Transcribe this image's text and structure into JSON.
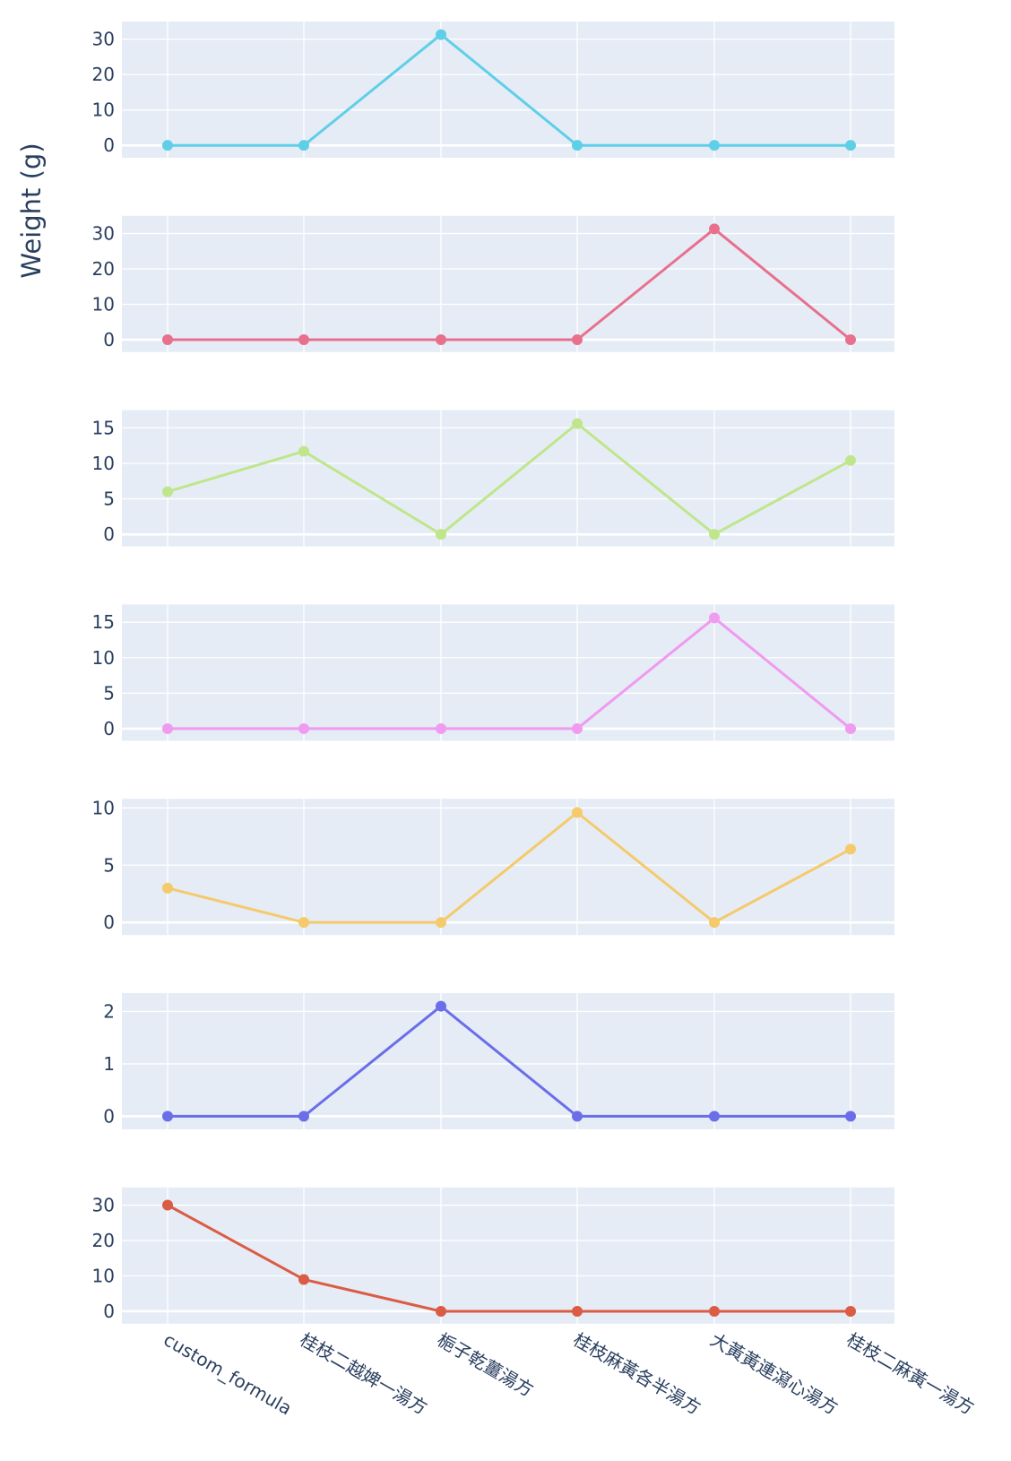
{
  "chart_data": {
    "type": "line",
    "ylabel": "Weight (g)",
    "xlabel": "",
    "categories": [
      "custom_formula",
      "桂枝二越婢一湯方",
      "梔子乾薑湯方",
      "桂枝麻黃各半湯方",
      "大黃黃連瀉心湯方",
      "桂枝二麻黃一湯方"
    ],
    "grid": true,
    "legend": "none",
    "series": [
      {
        "color": "#5fcfe8",
        "values": [
          0,
          0,
          31.3,
          0,
          0,
          0
        ],
        "ylim": [
          -3.5,
          35
        ],
        "yticks": [
          0,
          10,
          20,
          30
        ]
      },
      {
        "color": "#e8708c",
        "values": [
          0,
          0,
          0,
          0,
          31.3,
          0
        ],
        "ylim": [
          -3.5,
          35
        ],
        "yticks": [
          0,
          10,
          20,
          30
        ]
      },
      {
        "color": "#bfe68a",
        "values": [
          6,
          11.7,
          0,
          15.6,
          0,
          10.4
        ],
        "ylim": [
          -1.7,
          17.5
        ],
        "yticks": [
          0,
          5,
          10,
          15
        ]
      },
      {
        "color": "#f09af0",
        "values": [
          0,
          0,
          0,
          0,
          15.6,
          0
        ],
        "ylim": [
          -1.7,
          17.5
        ],
        "yticks": [
          0,
          5,
          10,
          15
        ]
      },
      {
        "color": "#f5ca6a",
        "values": [
          3,
          0,
          0,
          9.6,
          0,
          6.4
        ],
        "ylim": [
          -1.1,
          10.8
        ],
        "yticks": [
          0,
          5,
          10
        ]
      },
      {
        "color": "#6a6ee8",
        "values": [
          0,
          0,
          2.1,
          0,
          0,
          0
        ],
        "ylim": [
          -0.25,
          2.35
        ],
        "yticks": [
          0,
          1,
          2
        ]
      },
      {
        "color": "#db5c44",
        "values": [
          30,
          9,
          0,
          0,
          0,
          0
        ],
        "ylim": [
          -3.5,
          35
        ],
        "yticks": [
          0,
          10,
          20,
          30
        ]
      }
    ]
  }
}
